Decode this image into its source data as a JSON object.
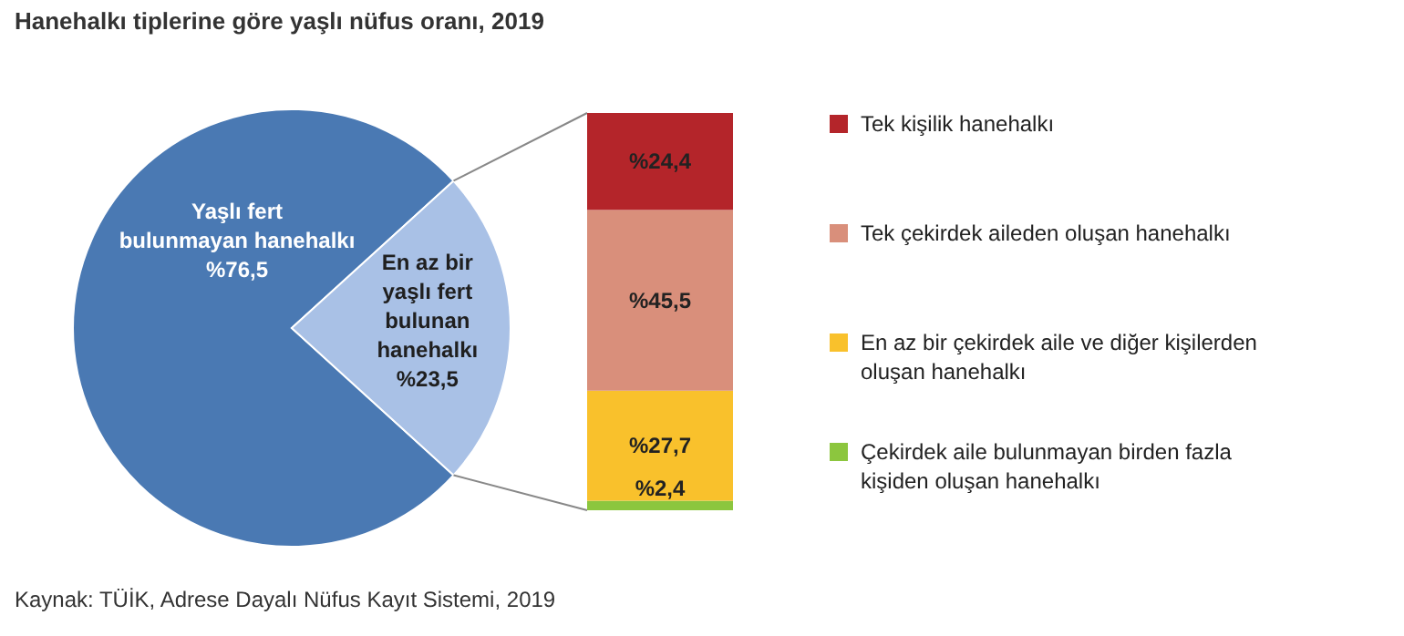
{
  "chart_data": [
    {
      "type": "pie",
      "title": "Hanehalkı tiplerine göre yaşlı nüfus oranı, 2019",
      "categories": [
        "Yaşlı fert bulunmayan hanehalkı",
        "En az bir yaşlı fert bulunan hanehalkı"
      ],
      "values": [
        76.5,
        23.5
      ],
      "colors": [
        "#4a79b3",
        "#a9c1e6"
      ],
      "value_labels": [
        "%76,5",
        "%23,5"
      ],
      "annotations": [
        "Kaynak: TÜİK, Adrese Dayalı Nüfus Kayıt Sistemi, 2019"
      ]
    },
    {
      "type": "bar",
      "stacked": true,
      "categories": [
        null
      ],
      "legend": "right",
      "series": [
        {
          "name": "Çekirdek aile bulunmayan birden fazla kişiden oluşan hanehalkı",
          "color": "#8cc63e",
          "values": [
            2.4
          ],
          "value_labels": [
            "%2,4"
          ]
        },
        {
          "name": "En az bir çekirdek aile ve diğer kişilerden oluşan hanehalkı",
          "color": "#f9c12c",
          "values": [
            27.7
          ],
          "value_labels": [
            "%27,7"
          ]
        },
        {
          "name": "Tek çekirdek aileden oluşan hanehalkı",
          "color": "#d98f7b",
          "values": [
            45.5
          ],
          "value_labels": [
            "%45,5"
          ]
        },
        {
          "name": "Tek kişilik hanehalkı",
          "color": "#b4252a",
          "values": [
            24.4
          ],
          "value_labels": [
            "%24,4"
          ]
        }
      ]
    }
  ]
}
